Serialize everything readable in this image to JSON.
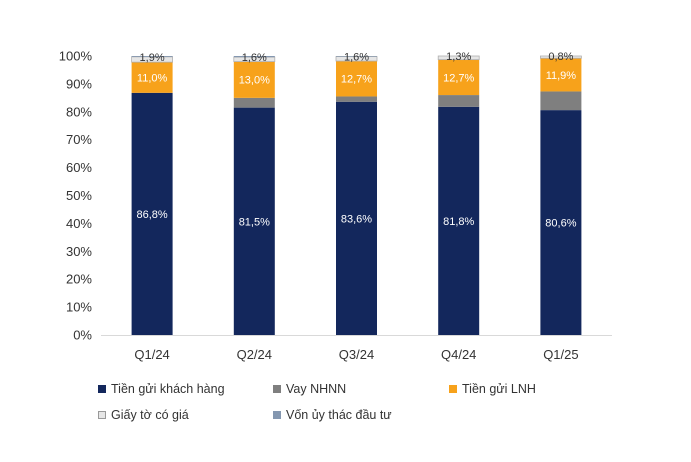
{
  "chart_data": {
    "type": "bar",
    "stacked": true,
    "categories": [
      "Q1/24",
      "Q2/24",
      "Q3/24",
      "Q4/24",
      "Q1/25"
    ],
    "series": [
      {
        "name": "Tiền gửi khách hàng",
        "color": "#13275c",
        "label_color": "#ffffff",
        "values": [
          86.8,
          81.5,
          83.6,
          81.8,
          80.6
        ],
        "labels": [
          "86,8%",
          "81,5%",
          "83,6%",
          "81,8%",
          "80,6%"
        ]
      },
      {
        "name": "Vay NHNN",
        "color": "#7f7f7f",
        "label_color": "#333333",
        "values": [
          0.0,
          3.5,
          1.9,
          4.2,
          6.7
        ],
        "labels": [
          "",
          "",
          "",
          "",
          ""
        ]
      },
      {
        "name": "Tiền gửi LNH",
        "color": "#f7a21b",
        "label_color": "#ffffff",
        "values": [
          11.0,
          13.0,
          12.7,
          12.7,
          11.9
        ],
        "labels": [
          "11,0%",
          "13,0%",
          "12,7%",
          "12,7%",
          "11,9%"
        ]
      },
      {
        "name": "Giấy tờ có giá",
        "color": "#e6e6e6",
        "label_color": "#333333",
        "values": [
          1.9,
          1.6,
          1.6,
          1.3,
          0.8
        ],
        "labels": [
          "1,9%",
          "1,6%",
          "1,6%",
          "1,3%",
          "0,8%"
        ]
      },
      {
        "name": "Vốn ủy thác đầu tư",
        "color": "#8497b0",
        "label_color": "#333333",
        "values": [
          0.3,
          0.4,
          0.2,
          0.0,
          0.0
        ],
        "labels": [
          "",
          "",
          "",
          "",
          ""
        ]
      }
    ],
    "ylim": [
      0,
      100
    ],
    "yticks": [
      "0%",
      "10%",
      "20%",
      "30%",
      "40%",
      "50%",
      "60%",
      "70%",
      "80%",
      "90%",
      "100%"
    ],
    "grid": false,
    "legend_position": "bottom"
  }
}
